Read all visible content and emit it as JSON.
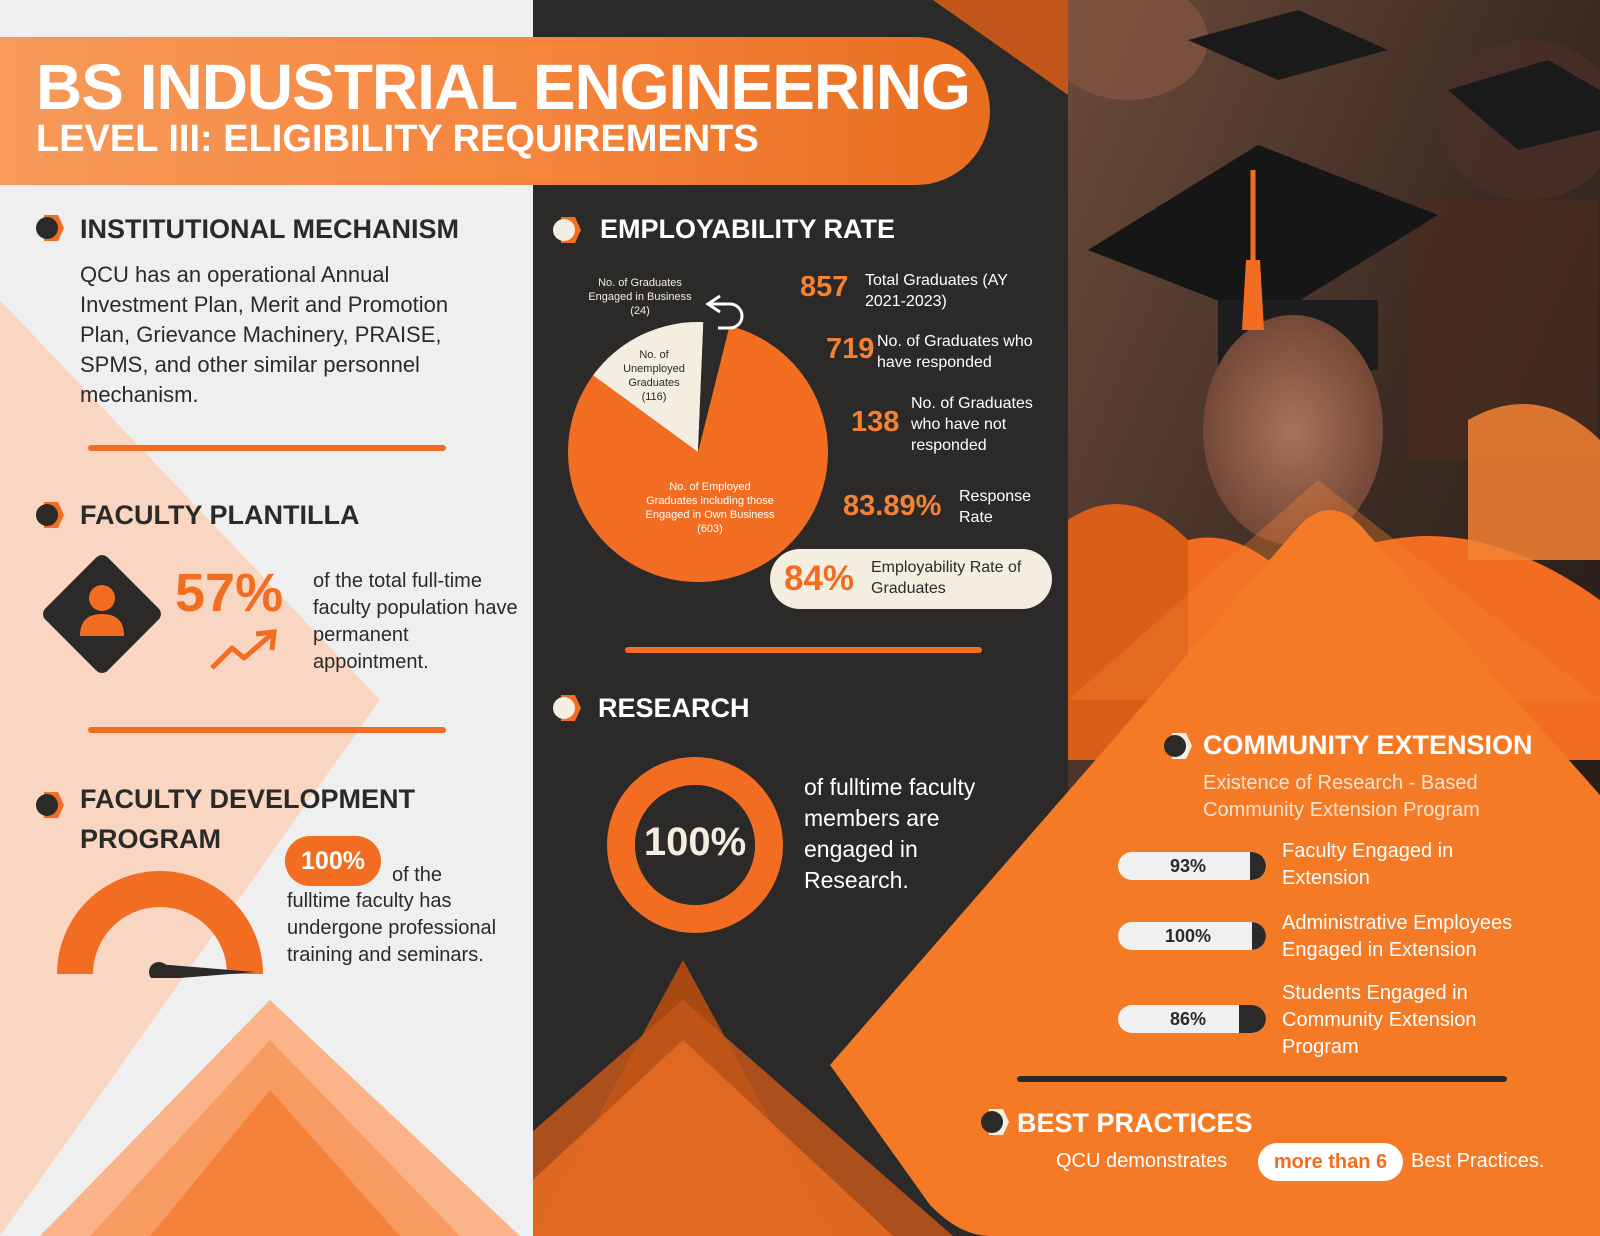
{
  "header": {
    "title": "BS INDUSTRIAL ENGINEERING",
    "subtitle": "LEVEL III: ELIGIBILITY REQUIREMENTS"
  },
  "institutional": {
    "title": "INSTITUTIONAL MECHANISM",
    "text": "QCU has an operational Annual Investment Plan, Merit and Promotion Plan, Grievance Machinery, PRAISE, SPMS, and other similar personnel mechanism."
  },
  "plantilla": {
    "title": "FACULTY PLANTILLA",
    "value": "57%",
    "text": "of the total full-time faculty population have permanent appointment."
  },
  "development": {
    "title_line1": "FACULTY DEVELOPMENT",
    "title_line2": "PROGRAM",
    "value": "100%",
    "text_first": "of the",
    "text_rest": "fulltime faculty has undergone professional training and seminars."
  },
  "employability": {
    "title": "EMPLOYABILITY RATE",
    "stats": [
      {
        "value": "857",
        "label": "Total Graduates (AY 2021-2023)"
      },
      {
        "value": "719",
        "label": "No. of Graduates who have responded"
      },
      {
        "value": "138",
        "label": "No. of Graduates who have not responded"
      },
      {
        "value": "83.89%",
        "label": "Response Rate"
      }
    ],
    "highlight": {
      "value": "84%",
      "label": "Employability Rate of Graduates"
    }
  },
  "chart_data": {
    "type": "pie",
    "slices": [
      {
        "label": "No. of Employed Graduates including those Engaged in Own Business",
        "value": 603,
        "value_label": "(603)",
        "color": "#f26d21"
      },
      {
        "label": "No. of Unemployed Graduates",
        "value": 116,
        "value_label": "(116)",
        "color": "#f3eedf"
      },
      {
        "label": "No. of Graduates Engaged in Business",
        "value": 24,
        "value_label": "(24)",
        "color": "#2b2a29"
      }
    ]
  },
  "research": {
    "title": "RESEARCH",
    "value": "100%",
    "text": "of fulltime faculty members are engaged in Research."
  },
  "extension": {
    "title": "COMMUNITY EXTENSION",
    "subtitle": "Existence of Research - Based Community Extension Program",
    "items": [
      {
        "value": "93%",
        "fraction": 0.93,
        "label": "Faculty Engaged in Extension"
      },
      {
        "value": "100%",
        "fraction": 1.0,
        "label": "Administrative Employees Engaged in Extension"
      },
      {
        "value": "86%",
        "fraction": 0.86,
        "label": "Students Engaged in Community Extension Program"
      }
    ]
  },
  "best": {
    "title": "BEST PRACTICES",
    "text_before": "QCU demonstrates",
    "highlight": "more than 6",
    "text_after": "Best Practices."
  },
  "colors": {
    "accent": "#f26d21",
    "dark": "#2b2a29",
    "cream": "#f3eedf"
  }
}
